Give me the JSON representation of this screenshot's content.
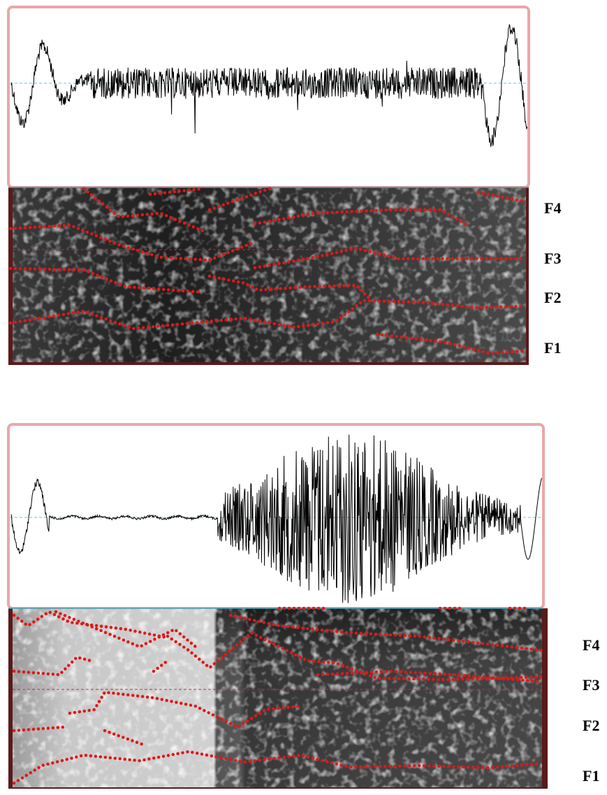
{
  "panels": [
    {
      "formant_labels": [
        "F4",
        "F3",
        "F2",
        "F1"
      ]
    },
    {
      "formant_labels": [
        "F4",
        "F3",
        "F2",
        "F1"
      ]
    }
  ]
}
